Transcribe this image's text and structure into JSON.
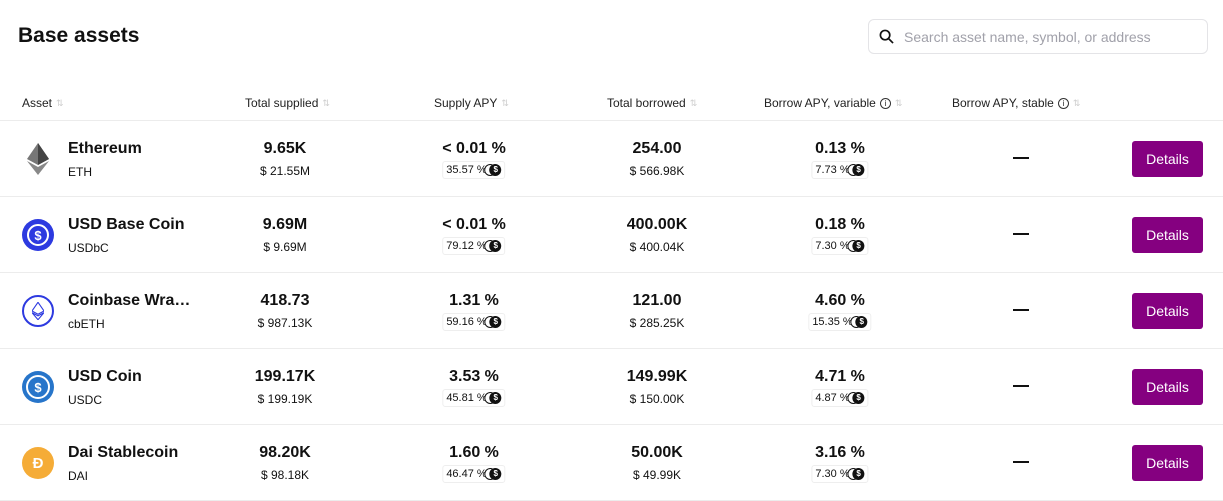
{
  "title": "Base assets",
  "search": {
    "placeholder": "Search asset name, symbol, or address"
  },
  "columns": [
    "Asset",
    "Total supplied",
    "Supply APY",
    "Total borrowed",
    "Borrow APY, variable",
    "Borrow APY, stable"
  ],
  "colors": {
    "button": "#850080"
  },
  "rows": [
    {
      "name": "Ethereum",
      "symbol": "ETH",
      "icon": "eth-icon",
      "icon_bg": "#ffffff",
      "supplied": "9.65K",
      "supplied_usd": "$ 21.55M",
      "supply_apy": "< 0.01 %",
      "supply_incentive": "35.57 %",
      "borrowed": "254.00",
      "borrowed_usd": "$ 566.98K",
      "borrow_var": "0.13 %",
      "borrow_incentive": "7.73 %",
      "stable": "—",
      "button": "Details"
    },
    {
      "name": "USD Base Coin",
      "symbol": "USDbC",
      "icon": "usdbc-icon",
      "icon_bg": "#2d3ae0",
      "supplied": "9.69M",
      "supplied_usd": "$ 9.69M",
      "supply_apy": "< 0.01 %",
      "supply_incentive": "79.12 %",
      "borrowed": "400.00K",
      "borrowed_usd": "$ 400.04K",
      "borrow_var": "0.18 %",
      "borrow_incentive": "7.30 %",
      "stable": "—",
      "button": "Details"
    },
    {
      "name": "Coinbase Wrapped Staked ETH",
      "symbol": "cbETH",
      "icon": "cbeth-icon",
      "icon_bg": "#ffffff",
      "supplied": "418.73",
      "supplied_usd": "$ 987.13K",
      "supply_apy": "1.31 %",
      "supply_incentive": "59.16 %",
      "borrowed": "121.00",
      "borrowed_usd": "$ 285.25K",
      "borrow_var": "4.60 %",
      "borrow_incentive": "15.35 %",
      "stable": "—",
      "button": "Details"
    },
    {
      "name": "USD Coin",
      "symbol": "USDC",
      "icon": "usdc-icon",
      "icon_bg": "#2775ca",
      "supplied": "199.17K",
      "supplied_usd": "$ 199.19K",
      "supply_apy": "3.53 %",
      "supply_incentive": "45.81 %",
      "borrowed": "149.99K",
      "borrowed_usd": "$ 150.00K",
      "borrow_var": "4.71 %",
      "borrow_incentive": "4.87 %",
      "stable": "—",
      "button": "Details"
    },
    {
      "name": "Dai Stablecoin",
      "symbol": "DAI",
      "icon": "dai-icon",
      "icon_bg": "#f5ac37",
      "supplied": "98.20K",
      "supplied_usd": "$ 98.18K",
      "supply_apy": "1.60 %",
      "supply_incentive": "46.47 %",
      "borrowed": "50.00K",
      "borrowed_usd": "$ 49.99K",
      "borrow_var": "3.16 %",
      "borrow_incentive": "7.30 %",
      "stable": "—",
      "button": "Details"
    }
  ]
}
